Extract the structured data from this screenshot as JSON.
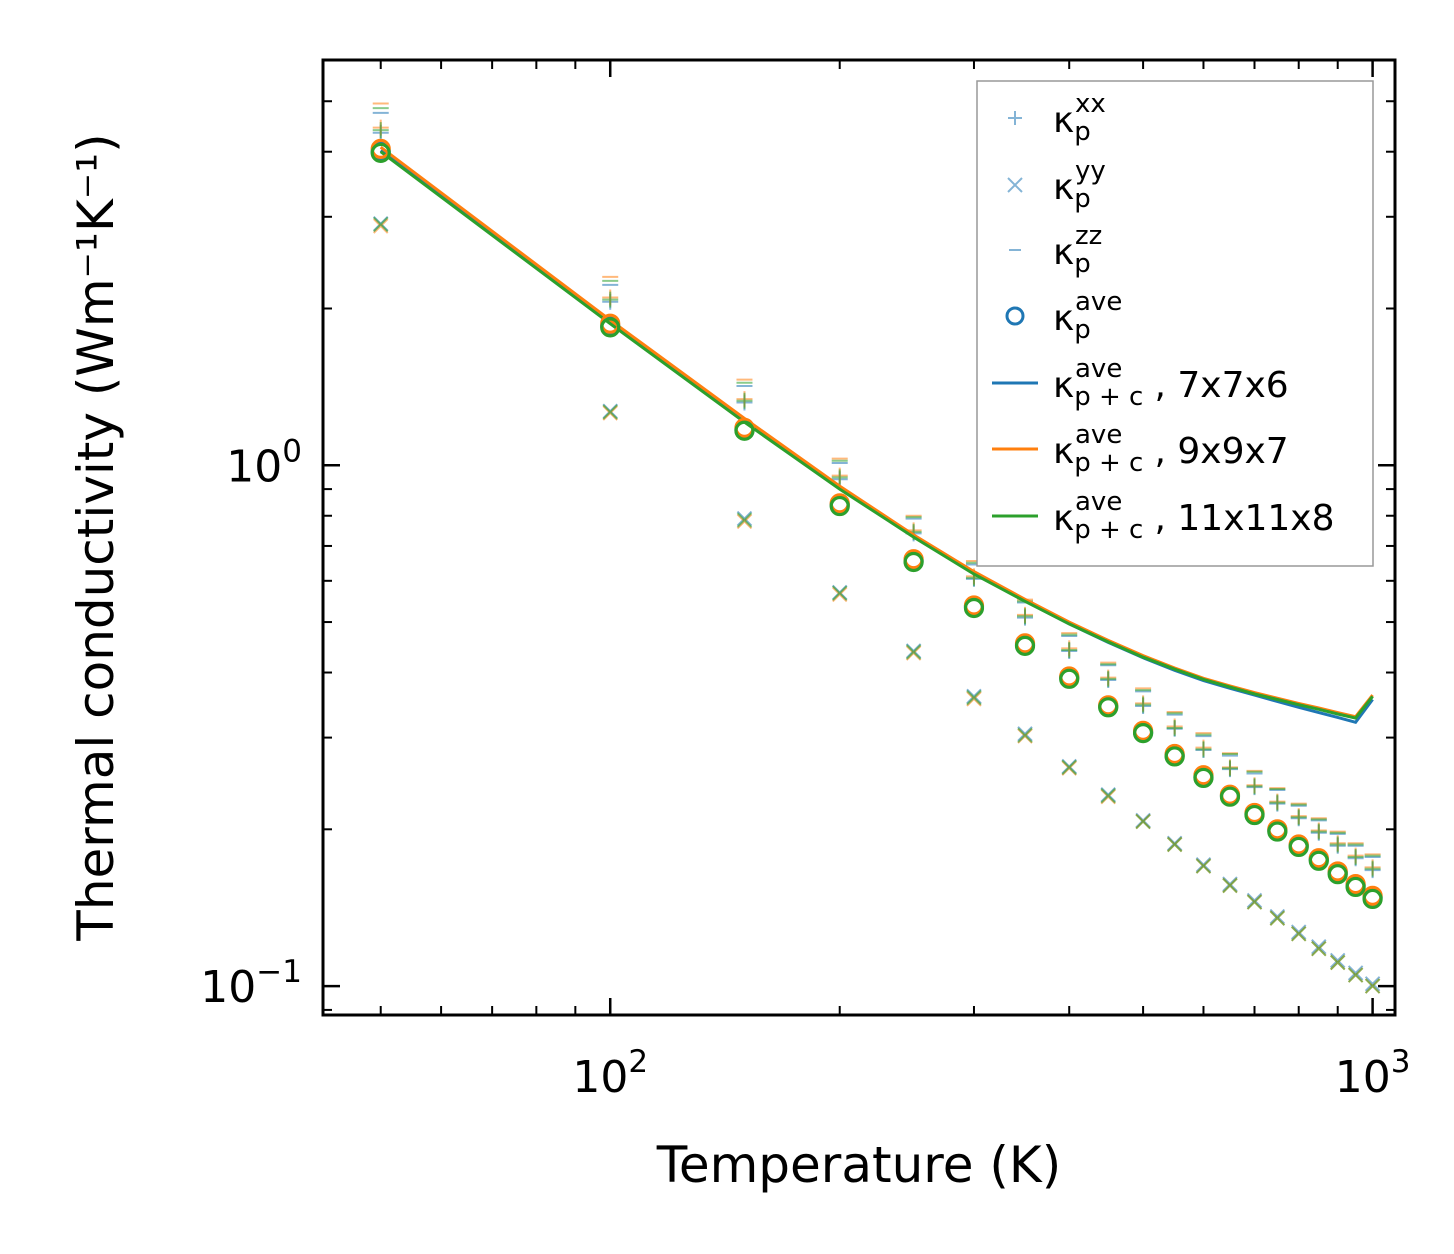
{
  "chart_data": {
    "type": "scatter",
    "xscale": "log",
    "yscale": "log",
    "xlim": [
      42,
      1070
    ],
    "ylim": [
      0.088,
      6.0
    ],
    "xlabel": "Temperature (K)",
    "ylabel": "Thermal conductivity (Wm⁻¹K⁻¹)",
    "xticks": [
      {
        "value": 100,
        "base": "10",
        "exp": "2"
      },
      {
        "value": 1000,
        "base": "10",
        "exp": "3"
      }
    ],
    "yticks": [
      {
        "value": 1.0,
        "base": "10",
        "exp": "0"
      },
      {
        "value": 0.1,
        "base": "10",
        "exp": "−1"
      }
    ],
    "legend": {
      "position": "top-right"
    },
    "legend_entries": [
      {
        "marker": "plus",
        "color": "#1f77b4",
        "sym": "κ",
        "sub": "p",
        "sup": "xx",
        "suffix": ""
      },
      {
        "marker": "x",
        "color": "#1f77b4",
        "sym": "κ",
        "sub": "p",
        "sup": "yy",
        "suffix": ""
      },
      {
        "marker": "dash",
        "color": "#1f77b4",
        "sym": "κ",
        "sub": "p",
        "sup": "zz",
        "suffix": ""
      },
      {
        "marker": "circle",
        "color": "#1f77b4",
        "sym": "κ",
        "sub": "p",
        "sup": "ave",
        "suffix": ""
      },
      {
        "marker": "line",
        "color": "#1f77b4",
        "sym": "κ",
        "sub": "p + c",
        "sup": "ave",
        "suffix": ", 7x7x6"
      },
      {
        "marker": "line",
        "color": "#ff7f0e",
        "sym": "κ",
        "sub": "p + c",
        "sup": "ave",
        "suffix": ", 9x9x7"
      },
      {
        "marker": "line",
        "color": "#2ca02c",
        "sym": "κ",
        "sub": "p + c",
        "sup": "ave",
        "suffix": ", 11x11x8"
      }
    ],
    "temperatures": [
      50,
      100,
      150,
      200,
      250,
      300,
      350,
      400,
      450,
      500,
      550,
      600,
      650,
      700,
      750,
      800,
      850,
      900,
      950,
      1000
    ],
    "series": [
      {
        "name": "7x7x6",
        "color": "#1f77b4",
        "kxx": [
          4.35,
          2.06,
          1.32,
          0.94,
          0.74,
          0.605,
          0.51,
          0.44,
          0.387,
          0.345,
          0.312,
          0.284,
          0.261,
          0.241,
          0.224,
          0.21,
          0.197,
          0.186,
          0.176,
          0.167
        ],
        "kyy": [
          2.91,
          1.27,
          0.79,
          0.57,
          0.44,
          0.36,
          0.305,
          0.264,
          0.233,
          0.208,
          0.188,
          0.171,
          0.157,
          0.146,
          0.136,
          0.127,
          0.119,
          0.112,
          0.106,
          0.101
        ],
        "kzz": [
          4.75,
          2.22,
          1.42,
          1.01,
          0.79,
          0.645,
          0.545,
          0.47,
          0.413,
          0.368,
          0.332,
          0.302,
          0.277,
          0.256,
          0.238,
          0.222,
          0.208,
          0.196,
          0.186,
          0.177
        ],
        "kave": [
          4.0,
          1.85,
          1.17,
          0.84,
          0.655,
          0.535,
          0.452,
          0.391,
          0.344,
          0.307,
          0.277,
          0.252,
          0.232,
          0.214,
          0.199,
          0.186,
          0.175,
          0.165,
          0.156,
          0.148
        ],
        "kpc": [
          4.02,
          1.88,
          1.22,
          0.905,
          0.73,
          0.62,
          0.549,
          0.496,
          0.457,
          0.427,
          0.404,
          0.386,
          0.373,
          0.362,
          0.352,
          0.343,
          0.335,
          0.328,
          0.321,
          0.355
        ]
      },
      {
        "name": "9x9x7",
        "color": "#ff7f0e",
        "kxx": [
          4.45,
          2.1,
          1.34,
          0.955,
          0.75,
          0.612,
          0.516,
          0.445,
          0.391,
          0.349,
          0.315,
          0.287,
          0.263,
          0.243,
          0.226,
          0.212,
          0.199,
          0.188,
          0.178,
          0.169
        ],
        "kyy": [
          2.88,
          1.26,
          0.78,
          0.565,
          0.436,
          0.356,
          0.302,
          0.262,
          0.231,
          0.207,
          0.187,
          0.17,
          0.156,
          0.145,
          0.135,
          0.126,
          0.118,
          0.111,
          0.105,
          0.1
        ],
        "kzz": [
          4.95,
          2.3,
          1.46,
          1.03,
          0.8,
          0.655,
          0.552,
          0.476,
          0.418,
          0.373,
          0.336,
          0.306,
          0.28,
          0.259,
          0.24,
          0.224,
          0.21,
          0.198,
          0.188,
          0.179
        ],
        "kave": [
          4.05,
          1.87,
          1.18,
          0.845,
          0.66,
          0.538,
          0.455,
          0.393,
          0.346,
          0.309,
          0.279,
          0.254,
          0.233,
          0.215,
          0.2,
          0.187,
          0.176,
          0.166,
          0.157,
          0.149
        ],
        "kpc": [
          4.08,
          1.9,
          1.23,
          0.912,
          0.735,
          0.625,
          0.553,
          0.5,
          0.461,
          0.431,
          0.408,
          0.39,
          0.377,
          0.366,
          0.357,
          0.349,
          0.342,
          0.335,
          0.329,
          0.362
        ]
      },
      {
        "name": "11x11x8",
        "color": "#2ca02c",
        "kxx": [
          4.4,
          2.08,
          1.33,
          0.948,
          0.745,
          0.608,
          0.513,
          0.442,
          0.389,
          0.347,
          0.313,
          0.285,
          0.262,
          0.242,
          0.225,
          0.211,
          0.198,
          0.187,
          0.177,
          0.168
        ],
        "kyy": [
          2.9,
          1.265,
          0.785,
          0.568,
          0.438,
          0.358,
          0.303,
          0.263,
          0.232,
          0.207,
          0.187,
          0.17,
          0.156,
          0.145,
          0.135,
          0.126,
          0.118,
          0.111,
          0.105,
          0.1
        ],
        "kzz": [
          4.85,
          2.26,
          1.44,
          1.02,
          0.795,
          0.65,
          0.548,
          0.473,
          0.415,
          0.37,
          0.334,
          0.304,
          0.279,
          0.258,
          0.239,
          0.223,
          0.209,
          0.197,
          0.187,
          0.178
        ],
        "kave": [
          3.98,
          1.84,
          1.165,
          0.835,
          0.652,
          0.532,
          0.45,
          0.389,
          0.343,
          0.306,
          0.276,
          0.251,
          0.231,
          0.213,
          0.198,
          0.185,
          0.174,
          0.164,
          0.155,
          0.147
        ],
        "kpc": [
          4.0,
          1.87,
          1.21,
          0.9,
          0.728,
          0.618,
          0.548,
          0.496,
          0.458,
          0.428,
          0.406,
          0.388,
          0.375,
          0.364,
          0.355,
          0.347,
          0.34,
          0.333,
          0.327,
          0.36
        ]
      }
    ]
  }
}
